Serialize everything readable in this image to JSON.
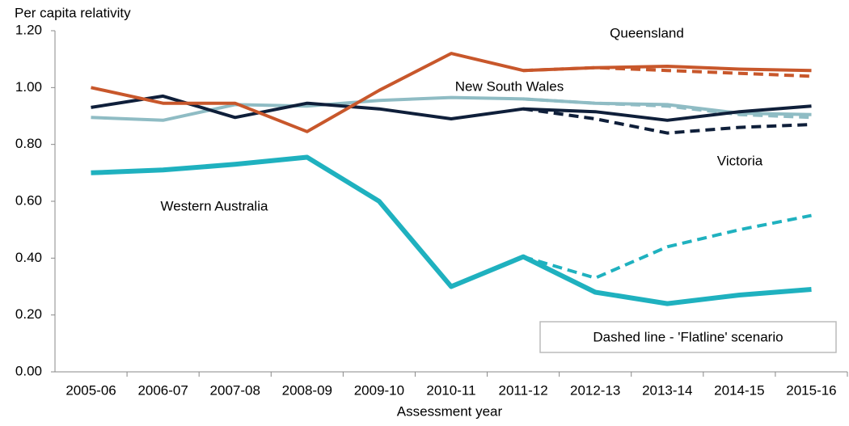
{
  "chart_data": {
    "type": "line",
    "ylabel": "Per capita relativity",
    "xlabel": "Assessment year",
    "annotation": "Dashed line - 'Flatline' scenario",
    "categories": [
      "2005-06",
      "2006-07",
      "2007-08",
      "2008-09",
      "2009-10",
      "2010-11",
      "2011-12",
      "2012-13",
      "2013-14",
      "2014-15",
      "2015-16"
    ],
    "ylim": [
      0,
      1.2
    ],
    "yticks": [
      {
        "value": 0,
        "label": "0.00"
      },
      {
        "value": 0.2,
        "label": "0.20"
      },
      {
        "value": 0.4,
        "label": "0.40"
      },
      {
        "value": 0.6,
        "label": "0.60"
      },
      {
        "value": 0.8,
        "label": "0.80"
      },
      {
        "value": 1,
        "label": "1.00"
      },
      {
        "value": 1.2,
        "label": "1.20"
      }
    ],
    "grid": false,
    "series": [
      {
        "name": "New South Wales",
        "color": "#8fbcc4",
        "width": 4,
        "values": [
          0.895,
          0.885,
          0.94,
          0.935,
          0.955,
          0.965,
          0.96,
          0.945,
          0.94,
          0.91,
          0.905
        ]
      },
      {
        "color": "#8fbcc4",
        "width": 4,
        "dashed": true,
        "values": [
          null,
          null,
          null,
          null,
          null,
          null,
          0.96,
          0.945,
          0.935,
          0.905,
          0.895
        ]
      },
      {
        "name": "Victoria",
        "color": "#0f1f3a",
        "width": 4,
        "values": [
          0.93,
          0.97,
          0.895,
          0.945,
          0.925,
          0.89,
          0.925,
          0.915,
          0.885,
          0.915,
          0.935
        ]
      },
      {
        "color": "#0f1f3a",
        "width": 4,
        "dashed": true,
        "values": [
          null,
          null,
          null,
          null,
          null,
          null,
          0.925,
          0.89,
          0.84,
          0.86,
          0.87
        ]
      },
      {
        "name": "Queensland",
        "color": "#c8572b",
        "width": 4,
        "values": [
          1.0,
          0.945,
          0.945,
          0.845,
          0.99,
          1.12,
          1.06,
          1.07,
          1.075,
          1.065,
          1.06
        ]
      },
      {
        "color": "#c8572b",
        "width": 4,
        "dashed": true,
        "values": [
          null,
          null,
          null,
          null,
          null,
          null,
          1.06,
          1.07,
          1.06,
          1.05,
          1.04
        ]
      },
      {
        "name": "Western Australia",
        "color": "#1fb1bf",
        "width": 6,
        "values": [
          0.7,
          0.71,
          0.73,
          0.755,
          0.6,
          0.3,
          0.405,
          0.28,
          0.24,
          0.27,
          0.29
        ]
      },
      {
        "color": "#1fb1bf",
        "width": 4,
        "dashed": true,
        "values": [
          null,
          null,
          null,
          null,
          null,
          null,
          0.405,
          0.33,
          0.44,
          0.5,
          0.55
        ]
      }
    ]
  }
}
